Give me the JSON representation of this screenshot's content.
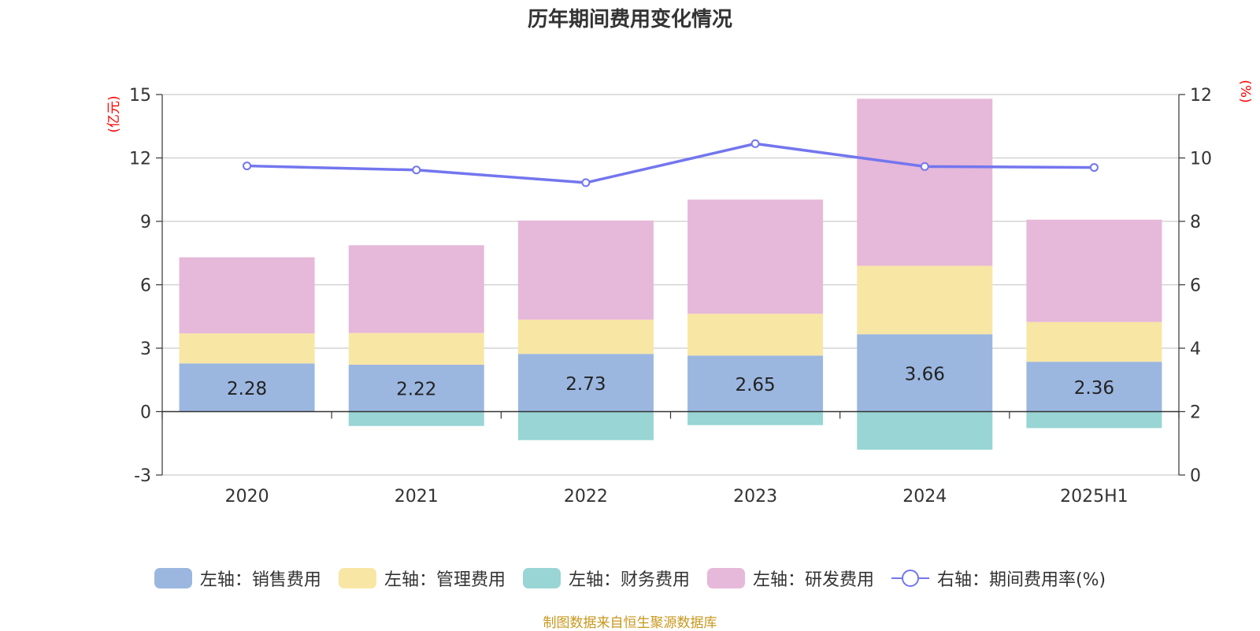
{
  "title": "历年期间费用变化情况",
  "source": "制图数据来自恒生聚源数据库",
  "left_axis_unit": "(亿元)",
  "right_axis_unit": "(%)",
  "legend": [
    {
      "label": "左轴：销售费用",
      "color": "#9bb7e0",
      "kind": "bar"
    },
    {
      "label": "左轴：管理费用",
      "color": "#f8e6a5",
      "kind": "bar"
    },
    {
      "label": "左轴：财务费用",
      "color": "#98d5d4",
      "kind": "bar"
    },
    {
      "label": "左轴：研发费用",
      "color": "#e6b8d9",
      "kind": "bar"
    },
    {
      "label": "右轴：期间费用率(%)",
      "color": "#7376ee",
      "kind": "line"
    }
  ],
  "chart_data": {
    "type": "bar",
    "stacked": true,
    "categories": [
      "2020",
      "2021",
      "2022",
      "2023",
      "2024",
      "2025H1"
    ],
    "series": [
      {
        "name": "左轴：销售费用",
        "axis": "left",
        "color": "#9bb7e0",
        "values": [
          2.28,
          2.22,
          2.73,
          2.65,
          3.66,
          2.36
        ],
        "labels_shown": true
      },
      {
        "name": "左轴：管理费用",
        "axis": "left",
        "color": "#f8e6a5",
        "values": [
          1.42,
          1.5,
          1.62,
          1.98,
          3.24,
          1.88
        ]
      },
      {
        "name": "左轴：财务费用",
        "axis": "left",
        "color": "#98d5d4",
        "values": [
          -0.02,
          -0.68,
          -1.35,
          -0.64,
          -1.8,
          -0.78
        ]
      },
      {
        "name": "左轴：研发费用",
        "axis": "left",
        "color": "#e6b8d9",
        "values": [
          3.6,
          4.15,
          4.69,
          5.4,
          7.9,
          4.84
        ]
      },
      {
        "name": "右轴：期间费用率(%)",
        "axis": "right",
        "type": "line",
        "color": "#7376ee",
        "values": [
          9.75,
          9.62,
          9.22,
          10.45,
          9.73,
          9.7
        ]
      }
    ],
    "left_axis": {
      "ylim": [
        -3,
        15
      ],
      "ticks": [
        -3,
        0,
        3,
        6,
        9,
        12,
        15
      ]
    },
    "right_axis": {
      "ylim": [
        0,
        12
      ],
      "ticks": [
        0,
        2,
        4,
        6,
        8,
        10,
        12
      ]
    },
    "grid": true,
    "legend_position": "bottom"
  }
}
